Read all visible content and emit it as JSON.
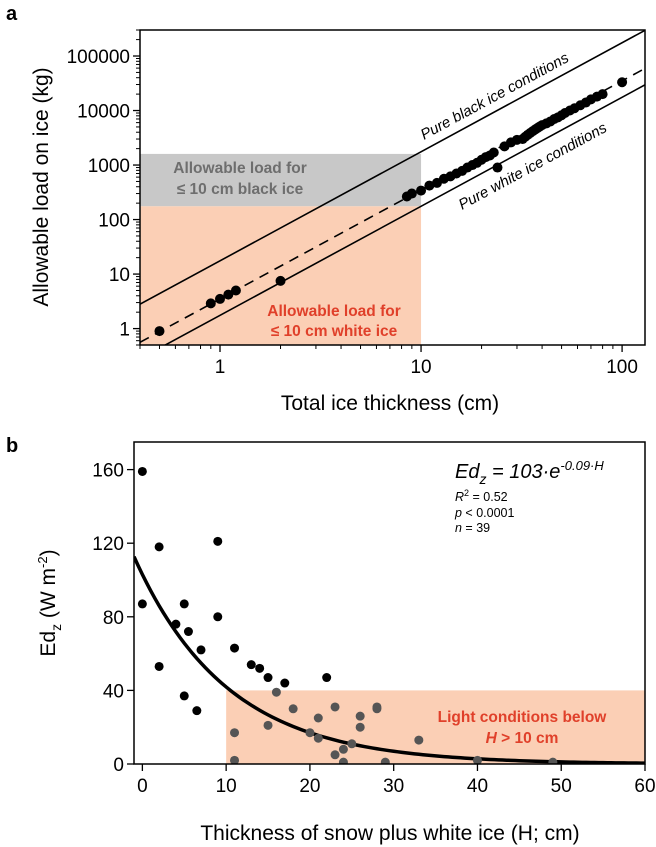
{
  "chart_data": [
    {
      "panel": "a",
      "type": "scatter",
      "x_scale": "log",
      "y_scale": "log",
      "xlabel": "Total ice thickness (cm)",
      "ylabel": "Allowable load on ice (kg)",
      "xlim": [
        0.4,
        130
      ],
      "ylim": [
        0.5,
        300000
      ],
      "x_ticks": [
        1,
        10,
        100
      ],
      "x_tick_labels": [
        "1",
        "10",
        "100"
      ],
      "y_ticks": [
        1,
        10,
        100,
        1000,
        10000,
        100000
      ],
      "y_tick_labels": [
        "1",
        "10",
        "100",
        "1000",
        "10000",
        "100000"
      ],
      "regions": [
        {
          "label_line1": "Allowable load for",
          "label_line2": "≤ 10 cm black ice",
          "x_range": [
            0.4,
            10
          ],
          "y_range": [
            175,
            1600
          ],
          "color": "#c8c8c8",
          "text_color": "#6e6e6e"
        },
        {
          "label_line1": "Allowable load for",
          "label_line2": "≤ 10 cm white ice",
          "x_range": [
            0.4,
            10
          ],
          "y_range": [
            0.5,
            175
          ],
          "color": "#fbcfb5",
          "text_color": "#e0402a"
        }
      ],
      "lines": [
        {
          "label": "Pure black ice conditions",
          "style": "solid",
          "coef": 17.5
        },
        {
          "label": "Pure white ice conditions",
          "style": "solid",
          "coef": 1.75
        },
        {
          "label": "",
          "style": "dashed",
          "coef": 3.5
        }
      ],
      "points": [
        [
          0.5,
          0.9
        ],
        [
          0.9,
          2.9
        ],
        [
          1.0,
          3.5
        ],
        [
          1.1,
          4.2
        ],
        [
          1.2,
          5.0
        ],
        [
          2.0,
          7.5
        ],
        [
          8.5,
          265
        ],
        [
          9.0,
          300
        ],
        [
          10.0,
          340
        ],
        [
          11.0,
          420
        ],
        [
          12.0,
          470
        ],
        [
          13.0,
          560
        ],
        [
          14.0,
          620
        ],
        [
          15.0,
          700
        ],
        [
          16.0,
          780
        ],
        [
          17.0,
          900
        ],
        [
          18.0,
          1000
        ],
        [
          19.0,
          1100
        ],
        [
          20.0,
          1250
        ],
        [
          21.0,
          1400
        ],
        [
          22.0,
          1500
        ],
        [
          23.0,
          1700
        ],
        [
          24.0,
          900
        ],
        [
          26.0,
          2200
        ],
        [
          28.0,
          2600
        ],
        [
          30.0,
          2900
        ],
        [
          32.0,
          3000
        ],
        [
          33.0,
          3300
        ],
        [
          34.0,
          3600
        ],
        [
          35.0,
          3900
        ],
        [
          36.0,
          4200
        ],
        [
          37.0,
          4500
        ],
        [
          38.0,
          4800
        ],
        [
          39.0,
          5100
        ],
        [
          40.0,
          5400
        ],
        [
          42.0,
          5800
        ],
        [
          44.0,
          6300
        ],
        [
          46.0,
          7000
        ],
        [
          48.0,
          7500
        ],
        [
          50.0,
          8200
        ],
        [
          52.0,
          9000
        ],
        [
          55.0,
          10000
        ],
        [
          58.0,
          11000
        ],
        [
          62.0,
          12500
        ],
        [
          66.0,
          14000
        ],
        [
          70.0,
          16000
        ],
        [
          75.0,
          18000
        ],
        [
          80.0,
          20000
        ],
        [
          100.0,
          33000
        ]
      ]
    },
    {
      "panel": "b",
      "type": "scatter",
      "xlabel": "Thickness of snow plus white ice (H; cm)",
      "ylabel_main": "Ed",
      "ylabel_sub": "z",
      "ylabel_units": " (W m",
      "ylabel_sup": "-2",
      "ylabel_close": ")",
      "xlim": [
        -1,
        60
      ],
      "ylim": [
        0,
        175
      ],
      "x_ticks": [
        0,
        10,
        20,
        30,
        40,
        50,
        60
      ],
      "y_ticks": [
        0,
        40,
        80,
        120,
        160
      ],
      "equation": {
        "lhs": "Ed",
        "lhs_sub": "z",
        "rhs": " = 103·e",
        "exponent": "-0.09·H"
      },
      "stats": {
        "r2_label": "R",
        "r2_sup": "2",
        "r2_value": " = 0.52",
        "p_label": "p",
        "p_value": " < 0.0001",
        "n_label": "n",
        "n_value": " = 39"
      },
      "fit": {
        "a": 103,
        "b": -0.09
      },
      "region": {
        "label_line1": "Light conditions below",
        "label_line2_var": "H",
        "label_line2_rest": " > 10 cm",
        "x_range": [
          10,
          60
        ],
        "y_range": [
          0,
          40
        ],
        "color": "#fbcfb5",
        "text_color": "#e0402a"
      },
      "points": [
        [
          0,
          159
        ],
        [
          0,
          87
        ],
        [
          2,
          118
        ],
        [
          2,
          53
        ],
        [
          4,
          76
        ],
        [
          5,
          87
        ],
        [
          5,
          37
        ],
        [
          5.5,
          72
        ],
        [
          7,
          62
        ],
        [
          6.5,
          29
        ],
        [
          9,
          121
        ],
        [
          9,
          80
        ],
        [
          11,
          63
        ],
        [
          11,
          17
        ],
        [
          11,
          2
        ],
        [
          13,
          54
        ],
        [
          14,
          52
        ],
        [
          15,
          21
        ],
        [
          15,
          47
        ],
        [
          16,
          39
        ],
        [
          17,
          44
        ],
        [
          18,
          30
        ],
        [
          20,
          17
        ],
        [
          21,
          25
        ],
        [
          21,
          14
        ],
        [
          22,
          47
        ],
        [
          23,
          31
        ],
        [
          23,
          5
        ],
        [
          24,
          8
        ],
        [
          24,
          1
        ],
        [
          25,
          11
        ],
        [
          26,
          20
        ],
        [
          26,
          26
        ],
        [
          28,
          30
        ],
        [
          28,
          31
        ],
        [
          29,
          1
        ],
        [
          33,
          13
        ],
        [
          40,
          2
        ],
        [
          49,
          1
        ]
      ]
    }
  ]
}
